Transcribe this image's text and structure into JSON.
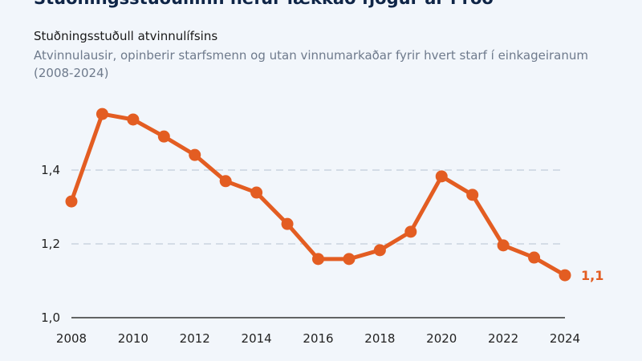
{
  "header": {
    "title": "Stuðningsstuðullinn hefur lækkað fjögur ár í röð",
    "subtitle": "Stuðningsstuðull atvinnulífsins",
    "description": "Atvinnulausir, opinberir starfsmenn og utan vinnumarkaðar fyrir hvert starf í einkageiranum (2008-2024)"
  },
  "chart_data": {
    "type": "line",
    "x": [
      2008,
      2009,
      2010,
      2011,
      2012,
      2013,
      2014,
      2015,
      2016,
      2017,
      2018,
      2019,
      2020,
      2021,
      2022,
      2023,
      2024
    ],
    "values": [
      1.315,
      1.552,
      1.537,
      1.491,
      1.441,
      1.37,
      1.339,
      1.254,
      1.159,
      1.159,
      1.183,
      1.233,
      1.383,
      1.333,
      1.196,
      1.163,
      1.115
    ],
    "ylim": [
      1.0,
      1.6
    ],
    "yticks": [
      "1,0",
      "1,2",
      "1,4"
    ],
    "ytick_values": [
      1.0,
      1.2,
      1.4
    ],
    "xticks": [
      "2008",
      "2010",
      "2012",
      "2014",
      "2016",
      "2018",
      "2020",
      "2022",
      "2024"
    ],
    "xtick_values": [
      2008,
      2010,
      2012,
      2014,
      2016,
      2018,
      2020,
      2022,
      2024
    ],
    "end_label": "1,1",
    "grid": "horizontal dashed",
    "color": "#e35d22",
    "grid_color": "#c9d3df"
  }
}
